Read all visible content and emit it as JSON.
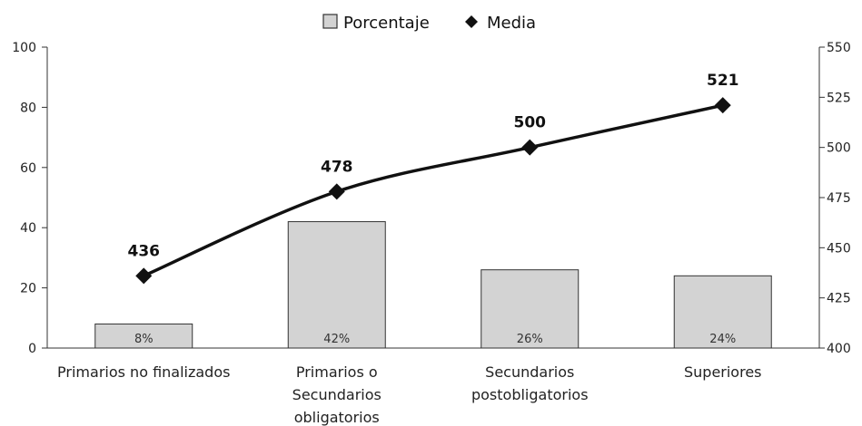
{
  "chart_data": {
    "type": "bar",
    "categories": [
      [
        "Primarios no finalizados"
      ],
      [
        "Primarios o",
        "Secundarios",
        "obligatorios"
      ],
      [
        "Secundarios",
        "postobligatorios"
      ],
      [
        "Superiores"
      ]
    ],
    "series": [
      {
        "name": "Porcentaje",
        "type": "bar",
        "axis": "left",
        "values": [
          8,
          42,
          26,
          24
        ],
        "data_labels": [
          "8%",
          "42%",
          "26%",
          "24%"
        ],
        "color": "#d3d3d3"
      },
      {
        "name": "Media",
        "type": "line",
        "axis": "right",
        "values": [
          436,
          478,
          500,
          521
        ],
        "data_labels": [
          "436",
          "478",
          "500",
          "521"
        ],
        "color": "#111111",
        "marker": "diamond"
      }
    ],
    "y_left": {
      "range": [
        0,
        100
      ],
      "ticks": [
        "0",
        "20",
        "40",
        "60",
        "80",
        "100"
      ],
      "tick_values": [
        0,
        20,
        40,
        60,
        80,
        100
      ]
    },
    "y_right": {
      "range": [
        400,
        550
      ],
      "ticks": [
        "400",
        "425",
        "450",
        "475",
        "500",
        "525",
        "550"
      ],
      "tick_values": [
        400,
        425,
        450,
        475,
        500,
        525,
        550
      ]
    },
    "legend": {
      "position": "top-center",
      "entries": [
        "Porcentaje",
        "Media"
      ]
    },
    "grid": false
  }
}
